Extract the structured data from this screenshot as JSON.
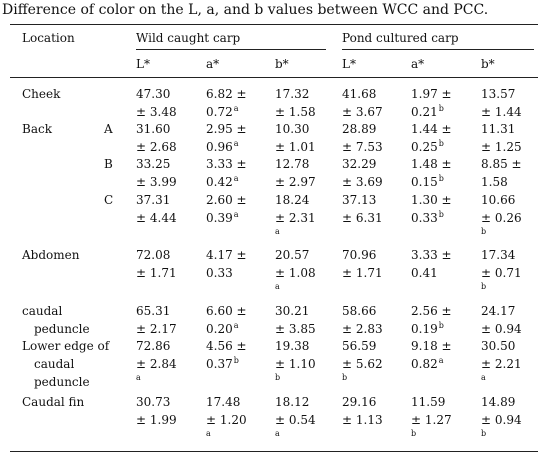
{
  "caption": "Difference of color on the L, a, and b values between WCC and PCC.",
  "headers": {
    "location": "Location",
    "group1": "Wild caught carp",
    "group2": "Pond cultured carp",
    "cols": [
      "L*",
      "a*",
      "b*",
      "L*",
      "a*",
      "b*"
    ]
  },
  "rows": [
    {
      "label": [
        "Cheek"
      ],
      "sublabel": "",
      "cells": [
        [
          "47.30",
          "± 3.48",
          ""
        ],
        [
          "6.82 ±",
          "0.72",
          "a"
        ],
        [
          "17.32",
          "± 1.58",
          ""
        ],
        [
          "41.68",
          "± 3.67",
          ""
        ],
        [
          "1.97 ±",
          "0.21",
          "b"
        ],
        [
          "13.57",
          "± 1.44",
          ""
        ]
      ]
    },
    {
      "label": [
        "Back"
      ],
      "sublabel": "A",
      "cells": [
        [
          "31.60",
          "± 2.68",
          ""
        ],
        [
          "2.95 ±",
          "0.96",
          "a"
        ],
        [
          "10.30",
          "± 1.01",
          ""
        ],
        [
          "28.89",
          "± 7.53",
          ""
        ],
        [
          "1.44 ±",
          "0.25",
          "b"
        ],
        [
          "11.31",
          "± 1.25",
          ""
        ]
      ]
    },
    {
      "label": [
        ""
      ],
      "sublabel": "B",
      "cells": [
        [
          "33.25",
          "± 3.99",
          ""
        ],
        [
          "3.33 ±",
          "0.42",
          "a"
        ],
        [
          "12.78",
          "± 2.97",
          ""
        ],
        [
          "32.29",
          "± 3.69",
          ""
        ],
        [
          "1.48 ±",
          "0.15",
          "b"
        ],
        [
          "8.85 ±",
          "1.58",
          ""
        ]
      ]
    },
    {
      "label": [
        ""
      ],
      "sublabel": "C",
      "cells": [
        [
          "37.31",
          "± 4.44",
          ""
        ],
        [
          "2.60 ±",
          "0.39",
          "a"
        ],
        [
          "18.24",
          "± 2.31",
          "a"
        ],
        [
          "37.13",
          "± 6.31",
          ""
        ],
        [
          "1.30 ±",
          "0.33",
          "b"
        ],
        [
          "10.66",
          "± 0.26",
          "b"
        ]
      ]
    },
    {
      "label": [
        "Abdomen"
      ],
      "sublabel": "",
      "cells": [
        [
          "72.08",
          "± 1.71",
          ""
        ],
        [
          "4.17 ±",
          "0.33",
          ""
        ],
        [
          "20.57",
          "± 1.08",
          "a"
        ],
        [
          "70.96",
          "± 1.71",
          ""
        ],
        [
          "3.33 ±",
          "0.41",
          ""
        ],
        [
          "17.34",
          "± 0.71",
          "b"
        ]
      ]
    },
    {
      "label": [
        "caudal",
        "peduncle"
      ],
      "sublabel": "",
      "cells": [
        [
          "65.31",
          "± 2.17",
          ""
        ],
        [
          "6.60 ±",
          "0.20",
          "a"
        ],
        [
          "30.21",
          "± 3.85",
          ""
        ],
        [
          "58.66",
          "± 2.83",
          ""
        ],
        [
          "2.56 ±",
          "0.19",
          "b"
        ],
        [
          "24.17",
          "± 0.94",
          ""
        ]
      ]
    },
    {
      "label": [
        "Lower edge of",
        "caudal",
        "peduncle"
      ],
      "sublabel": "",
      "cells": [
        [
          "72.86",
          "± 2.84",
          "a"
        ],
        [
          "4.56 ±",
          "0.37",
          "b"
        ],
        [
          "19.38",
          "± 1.10",
          "b"
        ],
        [
          "56.59",
          "± 5.62",
          "b"
        ],
        [
          "9.18 ±",
          "0.82",
          "a"
        ],
        [
          "30.50",
          "± 2.21",
          "a"
        ]
      ]
    },
    {
      "label": [
        "Caudal fin"
      ],
      "sublabel": "",
      "cells": [
        [
          "30.73",
          "± 1.99",
          ""
        ],
        [
          "17.48",
          "± 1.20",
          "a"
        ],
        [
          "18.12",
          "± 0.54",
          "a"
        ],
        [
          "29.16",
          "± 1.13",
          ""
        ],
        [
          "11.59",
          "± 1.27",
          "b"
        ],
        [
          "14.89",
          "± 0.94",
          "b"
        ]
      ]
    }
  ]
}
